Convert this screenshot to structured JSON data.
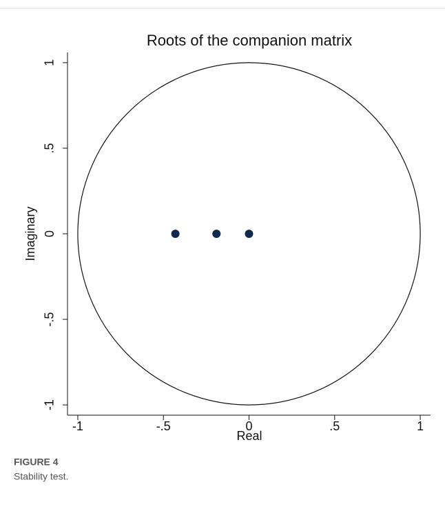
{
  "chart_data": {
    "type": "scatter",
    "title": "Roots of the companion matrix",
    "x_label": "Real",
    "y_label": "Imaginary",
    "series": [
      {
        "color": "#0f2a4f",
        "x": [
          -0.43,
          -0.19,
          0
        ],
        "values": [
          0,
          0,
          0
        ]
      }
    ],
    "xlim": [
      -1.06,
      1.06
    ],
    "ylim": [
      -1.06,
      1.06
    ],
    "xticks": [
      -1,
      {
        "value": -0.5,
        "label": "-.5"
      },
      0,
      {
        "value": 0.5,
        "label": ".5"
      },
      1
    ],
    "yticks": [
      -1,
      {
        "value": -0.5,
        "label": "-.5"
      },
      0,
      {
        "value": 0.5,
        "label": ".5"
      },
      1
    ],
    "unit_circle": true,
    "grid": false
  },
  "caption": {
    "label": "FIGURE 4",
    "text": "Stability test."
  }
}
